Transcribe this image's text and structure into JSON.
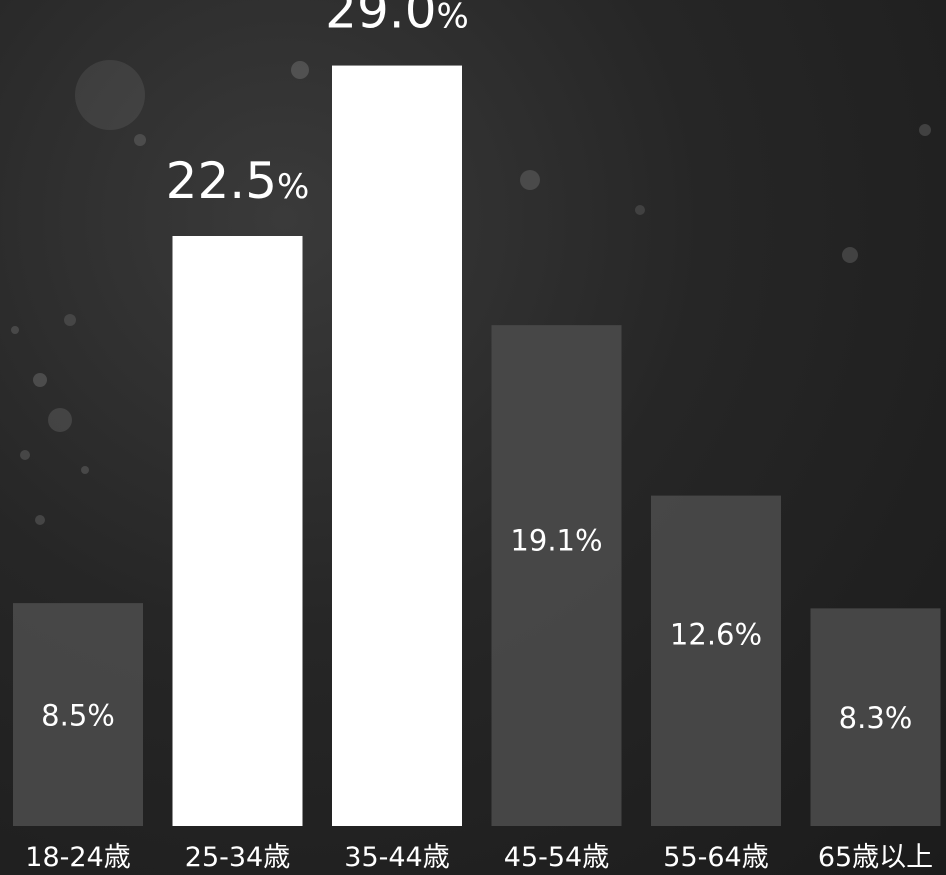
{
  "chart_data": {
    "type": "bar",
    "title": "",
    "xlabel": "",
    "ylabel": "",
    "ylim": [
      0,
      31.5
    ],
    "grid": false,
    "legend": "none",
    "categories": [
      "18-24歳",
      "25-34歳",
      "35-44歳",
      "45-54歳",
      "55-64歳",
      "65歳以上"
    ],
    "values": [
      8.5,
      22.5,
      29.0,
      19.1,
      12.6,
      8.3
    ],
    "value_labels": [
      "8.5%",
      "22.5%",
      "29.0%",
      "19.1%",
      "12.6%",
      "8.3%"
    ],
    "highlighted": [
      false,
      true,
      true,
      false,
      false,
      false
    ],
    "colors": {
      "highlight": "#ffffff",
      "normal": "#4a4a4a",
      "label": "#ffffff",
      "background": "#262626"
    }
  }
}
